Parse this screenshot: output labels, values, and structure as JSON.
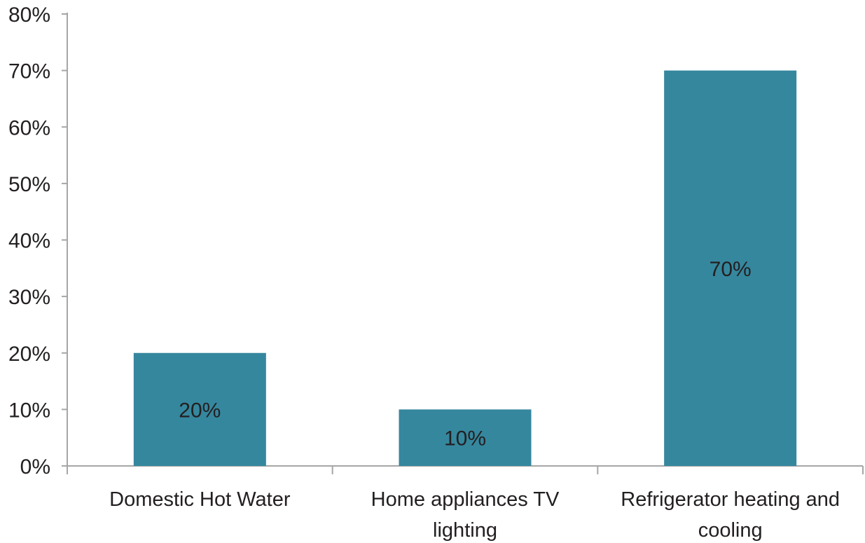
{
  "chart_data": {
    "type": "bar",
    "categories": [
      [
        "Domestic Hot Water"
      ],
      [
        "Home appliances TV",
        "lighting"
      ],
      [
        "Refrigerator heating and",
        "cooling"
      ]
    ],
    "values": [
      20,
      10,
      70
    ],
    "data_labels": [
      "20%",
      "10%",
      "70%"
    ],
    "ylim": [
      0,
      80
    ],
    "yticks": [
      0,
      10,
      20,
      30,
      40,
      50,
      60,
      70,
      80
    ],
    "ytick_labels": [
      "0%",
      "10%",
      "20%",
      "30%",
      "40%",
      "50%",
      "60%",
      "70%",
      "80%"
    ],
    "bar_color": "#35879e",
    "grid": false,
    "legend": "none"
  }
}
